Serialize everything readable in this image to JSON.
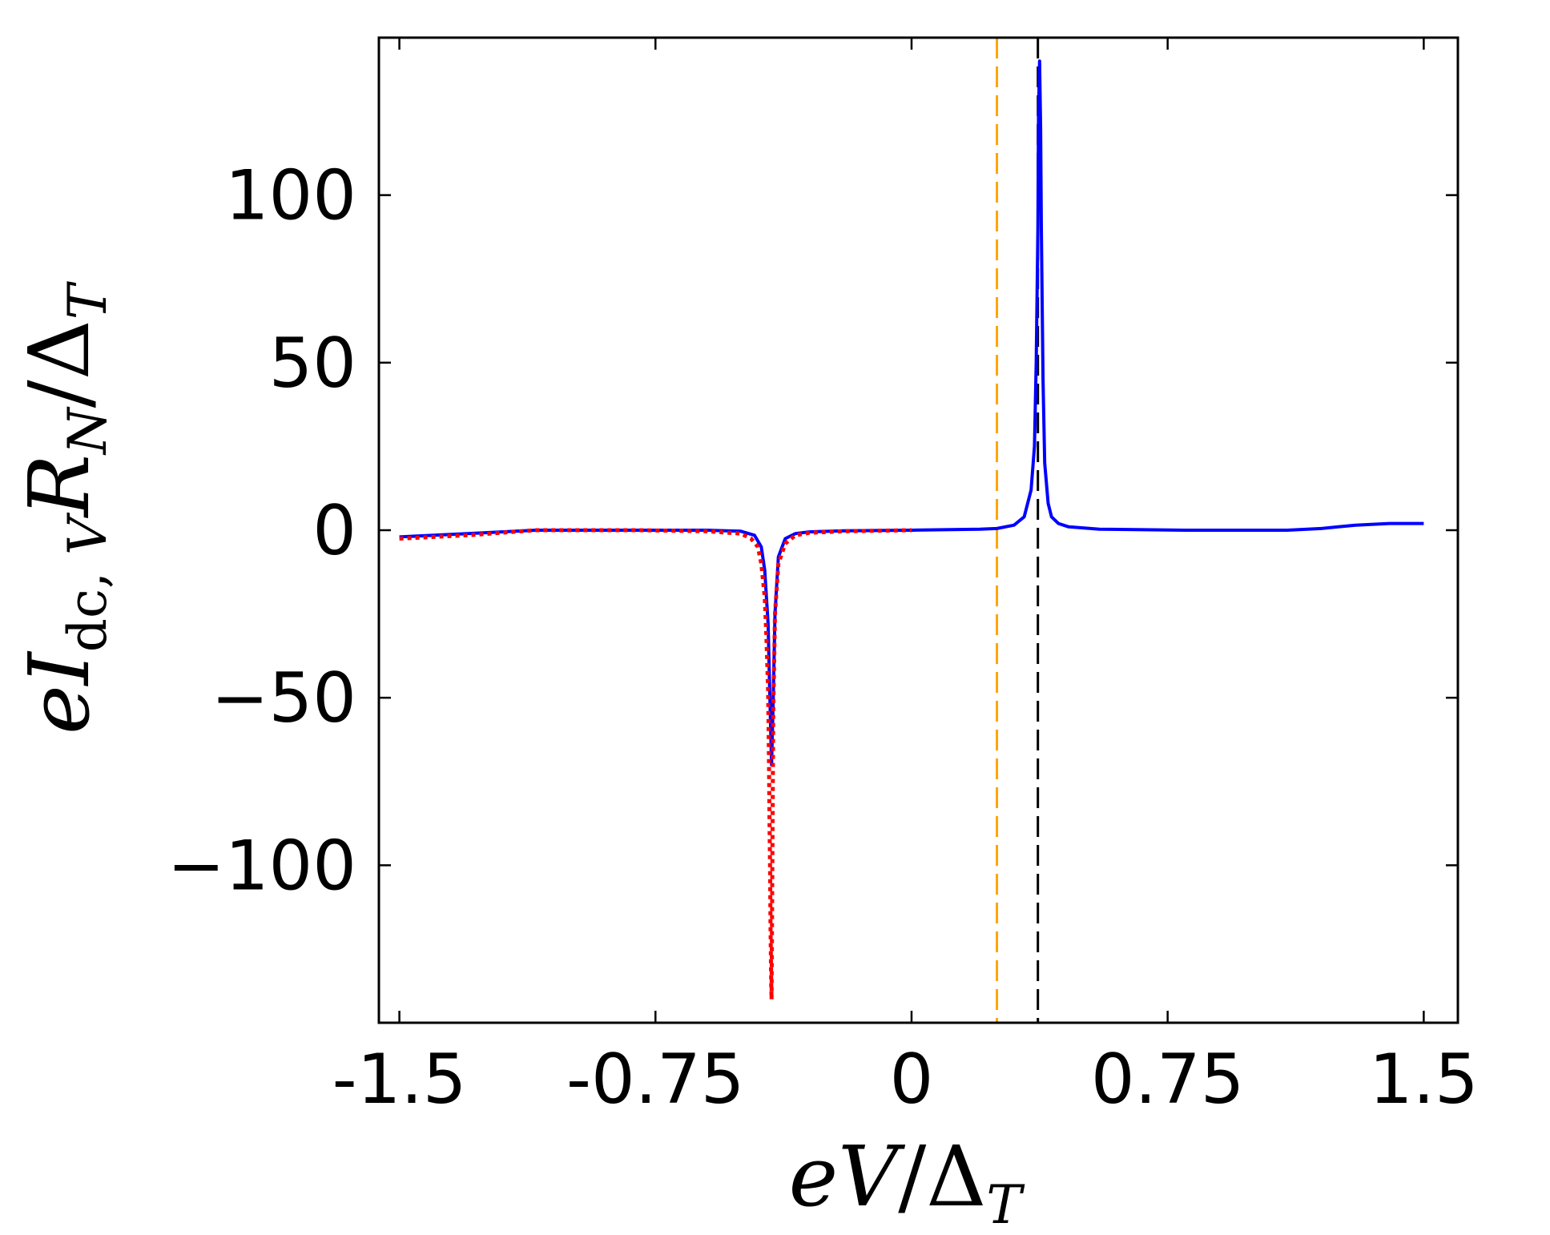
{
  "chart_data": {
    "type": "line",
    "xlabel": "eV/Δ_T",
    "ylabel": "eI_dc,V R_N/Δ_T",
    "xlim": [
      -1.56,
      1.6
    ],
    "ylim": [
      -147,
      147
    ],
    "x_ticks": [
      -1.5,
      -0.75,
      0,
      0.75,
      1.5
    ],
    "x_tick_labels": [
      "-1.5",
      "-0.75",
      "0",
      "0.75",
      "1.5"
    ],
    "y_ticks": [
      -100,
      -50,
      0,
      50,
      100
    ],
    "y_tick_labels": [
      "−100",
      "−50",
      "0",
      "50",
      "100"
    ],
    "grid": false,
    "legend": "none",
    "colors": {
      "solid_series": "#0000ff",
      "dotted_series": "#ff0000",
      "orange_vline": "#ffa500",
      "black_vline": "#000000",
      "axes": "#000000"
    },
    "series": [
      {
        "style": "solid",
        "color": "#0000ff",
        "x": [
          -1.5,
          -1.3,
          -1.1,
          -0.8,
          -0.6,
          -0.5,
          -0.46,
          -0.44,
          -0.43,
          -0.42,
          -0.415,
          -0.41,
          -0.405,
          -0.4,
          -0.39,
          -0.37,
          -0.34,
          -0.3,
          -0.2,
          0,
          0.2,
          0.25,
          0.3,
          0.33,
          0.35,
          0.36,
          0.365,
          0.37,
          0.372,
          0.375,
          0.378,
          0.38,
          0.385,
          0.39,
          0.4,
          0.41,
          0.43,
          0.46,
          0.55,
          0.8,
          1.1,
          1.2,
          1.25,
          1.3,
          1.4,
          1.5
        ],
        "y": [
          -2,
          -1,
          0,
          0,
          0,
          -0.3,
          -1.5,
          -5,
          -12,
          -28,
          -50,
          -70,
          -50,
          -25,
          -8,
          -2.5,
          -1,
          -0.5,
          -0.2,
          0,
          0.3,
          0.5,
          1.5,
          4,
          12,
          25,
          50,
          90,
          125,
          140,
          120,
          90,
          45,
          20,
          8,
          4,
          2,
          1,
          0.3,
          0,
          0,
          0.5,
          1,
          1.5,
          2,
          2
        ]
      },
      {
        "style": "dotted",
        "color": "#ff0000",
        "x": [
          -1.5,
          -1.3,
          -1.1,
          -0.8,
          -0.6,
          -0.5,
          -0.47,
          -0.45,
          -0.44,
          -0.43,
          -0.425,
          -0.42,
          -0.418,
          -0.416,
          -0.414,
          -0.413,
          -0.412,
          -0.411,
          -0.41,
          -0.405,
          -0.4,
          -0.39,
          -0.37,
          -0.34,
          -0.3,
          -0.2,
          0
        ],
        "y": [
          -2.5,
          -1.5,
          0,
          0,
          -0.3,
          -1,
          -2.5,
          -5,
          -10,
          -20,
          -32,
          -48,
          -65,
          -85,
          -105,
          -118,
          -128,
          -136,
          -140,
          -55,
          -25,
          -10,
          -4,
          -1.5,
          -0.8,
          -0.3,
          0
        ]
      }
    ],
    "vlines": [
      {
        "x": 0.25,
        "color": "#ffa500",
        "style": "dashed"
      },
      {
        "x": 0.37,
        "color": "#000000",
        "style": "dashed"
      }
    ]
  }
}
